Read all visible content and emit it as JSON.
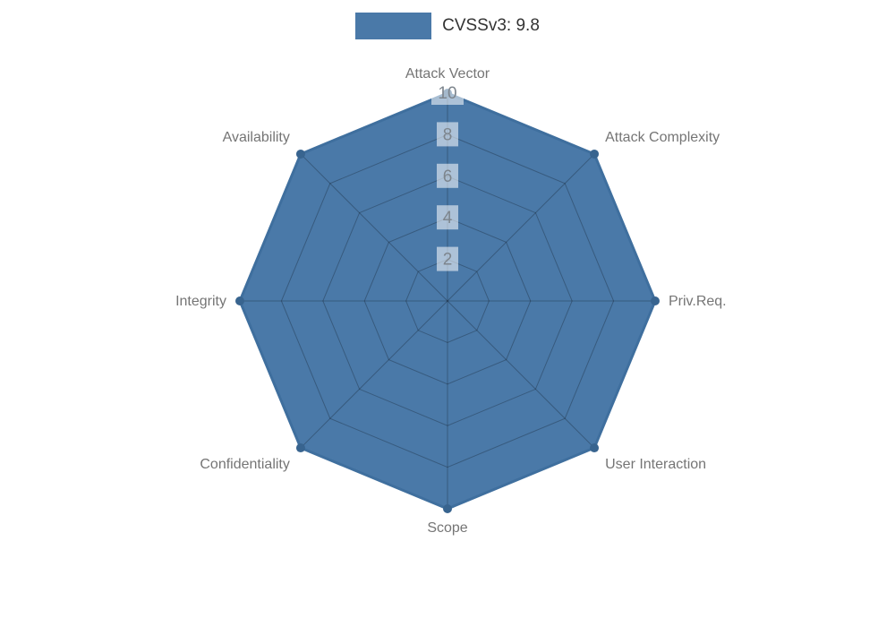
{
  "legend": {
    "label": "CVSSv3: 9.8"
  },
  "chart_data": {
    "type": "radar",
    "title": "CVSSv3: 9.8",
    "categories": [
      "Attack Vector",
      "Attack Complexity",
      "Priv.Req.",
      "User Interaction",
      "Scope",
      "Confidentiality",
      "Integrity",
      "Availability"
    ],
    "series": [
      {
        "name": "CVSSv3: 9.8",
        "values": [
          10,
          10,
          10,
          10,
          10,
          10,
          10,
          10
        ]
      }
    ],
    "rlim": [
      0,
      10
    ],
    "rticks": [
      2,
      4,
      6,
      8,
      10
    ],
    "grid": true,
    "legend_position": "top",
    "colors": {
      "fill": "#4a79a8",
      "stroke": "#3f6f9e",
      "marker": "#38648f",
      "grid": "rgba(0,0,0,0.25)",
      "axis_label": "#757575",
      "tick_text": "#7d858d",
      "tick_bg": "rgba(255,255,255,0.55)",
      "legend_text": "#333333"
    }
  }
}
